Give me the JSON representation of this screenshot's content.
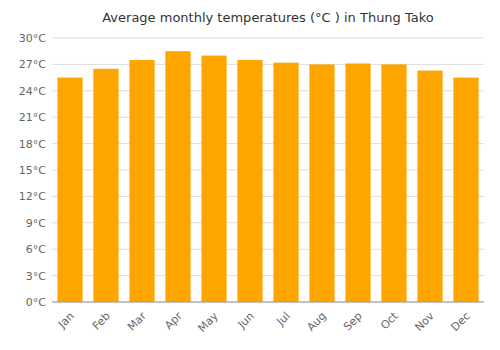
{
  "chart_data": {
    "type": "bar",
    "title": "Average monthly temperatures (°C ) in Thung Tako",
    "categories": [
      "Jan",
      "Feb",
      "Mar",
      "Apr",
      "May",
      "Jun",
      "Jul",
      "Aug",
      "Sep",
      "Oct",
      "Nov",
      "Dec"
    ],
    "values": [
      25.5,
      26.5,
      27.5,
      28.5,
      28.0,
      27.5,
      27.2,
      27.0,
      27.1,
      27.0,
      26.3,
      25.5
    ],
    "color": "#FFA500",
    "ylim": [
      0,
      30
    ],
    "yticks": [
      {
        "value": 0,
        "label": "0°C"
      },
      {
        "value": 3,
        "label": "3°C"
      },
      {
        "value": 6,
        "label": "6°C"
      },
      {
        "value": 9,
        "label": "9°C"
      },
      {
        "value": 12,
        "label": "12°C"
      },
      {
        "value": 15,
        "label": "15°C"
      },
      {
        "value": 18,
        "label": "18°C"
      },
      {
        "value": 21,
        "label": "21°C"
      },
      {
        "value": 24,
        "label": "24°C"
      },
      {
        "value": 27,
        "label": "27°C"
      },
      {
        "value": 30,
        "label": "30°C"
      }
    ],
    "grid": true
  }
}
